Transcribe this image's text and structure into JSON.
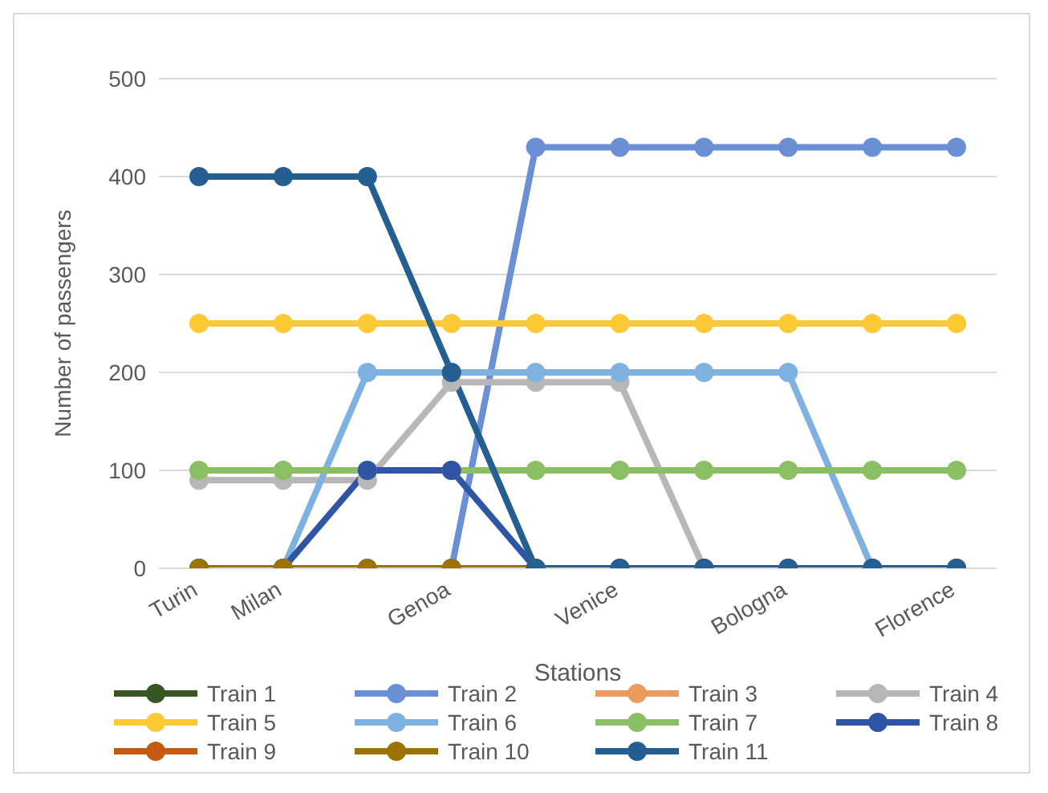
{
  "chart_data": {
    "type": "line",
    "xlabel": "Stations",
    "ylabel": "Number of passengers",
    "categories": [
      "Turin",
      "Milan",
      null,
      "Genoa",
      null,
      "Venice",
      null,
      "Bologna",
      null,
      "Florence"
    ],
    "ylim": [
      0,
      500
    ],
    "yticks": [
      0,
      100,
      200,
      300,
      400,
      500
    ],
    "grid": "y",
    "legend": "bottom",
    "marker": "circle",
    "line_style": "solid",
    "series": [
      {
        "name": "Train 1",
        "color": "#375623",
        "values": [
          null,
          null,
          null,
          null,
          null,
          null,
          null,
          null,
          null,
          null
        ]
      },
      {
        "name": "Train 2",
        "color": "#6a8fd4",
        "values": [
          0,
          0,
          0,
          0,
          430,
          430,
          430,
          430,
          430,
          430
        ]
      },
      {
        "name": "Train 3",
        "color": "#ed9a5f",
        "values": [
          null,
          null,
          null,
          null,
          null,
          null,
          null,
          null,
          null,
          null
        ]
      },
      {
        "name": "Train 4",
        "color": "#b7b7b7",
        "values": [
          90,
          90,
          90,
          190,
          190,
          190,
          0,
          0,
          0,
          0
        ]
      },
      {
        "name": "Train 5",
        "color": "#ffc935",
        "values": [
          250,
          250,
          250,
          250,
          250,
          250,
          250,
          250,
          250,
          250
        ]
      },
      {
        "name": "Train 6",
        "color": "#7eb0e0",
        "values": [
          0,
          0,
          200,
          200,
          200,
          200,
          200,
          200,
          0,
          0
        ]
      },
      {
        "name": "Train 7",
        "color": "#8bbf63",
        "values": [
          100,
          100,
          100,
          100,
          100,
          100,
          100,
          100,
          100,
          100
        ]
      },
      {
        "name": "Train 8",
        "color": "#2f55a4",
        "values": [
          0,
          0,
          100,
          100,
          0,
          0,
          0,
          0,
          0,
          0
        ]
      },
      {
        "name": "Train 9",
        "color": "#c55a11",
        "values": [
          null,
          null,
          null,
          null,
          null,
          null,
          null,
          null,
          null,
          null
        ]
      },
      {
        "name": "Train 10",
        "color": "#9c7300",
        "values": [
          0,
          0,
          0,
          0,
          0,
          null,
          null,
          null,
          null,
          null
        ]
      },
      {
        "name": "Train 11",
        "color": "#255e91",
        "values": [
          400,
          400,
          400,
          200,
          0,
          0,
          0,
          0,
          0,
          0
        ]
      }
    ]
  }
}
